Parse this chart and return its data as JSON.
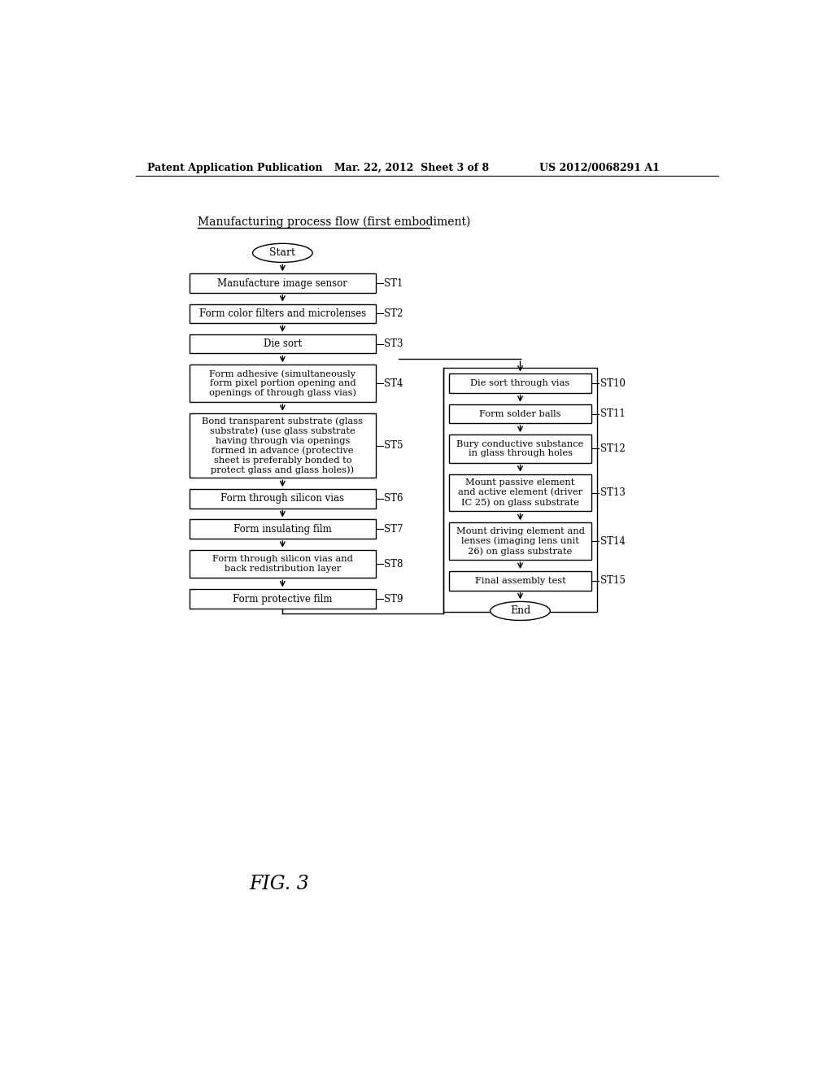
{
  "bg_color": "#ffffff",
  "header_left": "Patent Application Publication",
  "header_mid": "Mar. 22, 2012  Sheet 3 of 8",
  "header_right": "US 2012/0068291 A1",
  "title": "Manufacturing process flow (first embodiment)",
  "fig_label": "FIG. 3",
  "start_text": "Start",
  "end_text": "End",
  "left_steps": [
    {
      "text": "Manufacture image sensor",
      "label": "ST1",
      "lines": 1
    },
    {
      "text": "Form color filters and microlenses",
      "label": "ST2",
      "lines": 1
    },
    {
      "text": "Die sort",
      "label": "ST3",
      "lines": 1
    },
    {
      "text": "Form adhesive (simultaneously\nform pixel portion opening and\nopenings of through glass vias)",
      "label": "ST4",
      "lines": 3
    },
    {
      "text": "Bond transparent substrate (glass\nsubstrate) (use glass substrate\nhaving through via openings\nformed in advance (protective\nsheet is preferably bonded to\nprotect glass and glass holes))",
      "label": "ST5",
      "lines": 6
    },
    {
      "text": "Form through silicon vias",
      "label": "ST6",
      "lines": 1
    },
    {
      "text": "Form insulating film",
      "label": "ST7",
      "lines": 1
    },
    {
      "text": "Form through silicon vias and\nback redistribution layer",
      "label": "ST8",
      "lines": 2
    },
    {
      "text": "Form protective film",
      "label": "ST9",
      "lines": 1
    }
  ],
  "right_steps": [
    {
      "text": "Die sort through vias",
      "label": "ST10",
      "lines": 1
    },
    {
      "text": "Form solder balls",
      "label": "ST11",
      "lines": 1
    },
    {
      "text": "Bury conductive substance\nin glass through holes",
      "label": "ST12",
      "lines": 2
    },
    {
      "text": "Mount passive element\nand active element (driver\nIC 25) on glass substrate",
      "label": "ST13",
      "lines": 3
    },
    {
      "text": "Mount driving element and\nlenses (imaging lens unit\n26) on glass substrate",
      "label": "ST14",
      "lines": 3
    },
    {
      "text": "Final assembly test",
      "label": "ST15",
      "lines": 1
    }
  ]
}
